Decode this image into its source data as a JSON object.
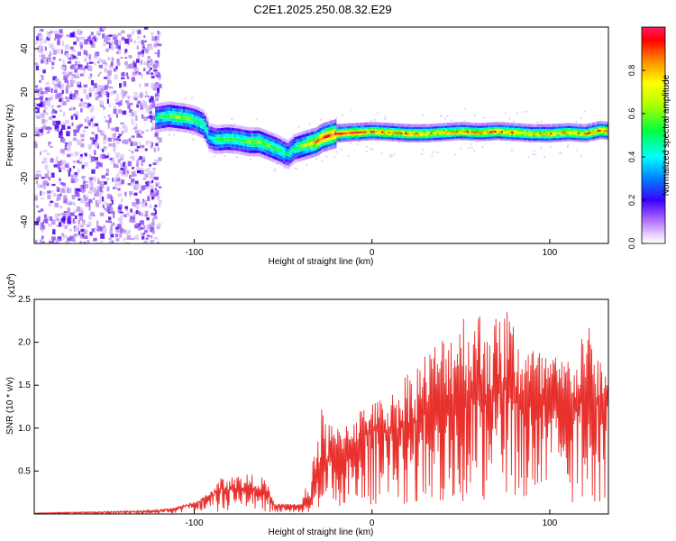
{
  "title": "C2E1.2025.250.08.32.E29",
  "top_panel": {
    "xlabel": "Height of straight line (km)",
    "ylabel": "Frequency (Hz)",
    "colorbar_label": "Normalized spectral amplitude"
  },
  "bottom_panel": {
    "xlabel": "Height of straight line (km)",
    "ylabel": "SNR (10 * v/v)",
    "multiplier_label": "(x10",
    "multiplier_exp": "4",
    "multiplier_close": ")"
  },
  "colors": {
    "snr_line": "#e8302c",
    "axis": "#000000",
    "scatter": "#b890ee"
  },
  "chart_data": [
    {
      "type": "heatmap",
      "title": "C2E1.2025.250.08.32.E29",
      "xlabel": "Height of straight line (km)",
      "ylabel": "Frequency (Hz)",
      "xlim": [
        -190,
        133
      ],
      "ylim": [
        -50,
        50
      ],
      "x_ticks": [
        -100,
        0,
        100
      ],
      "x_tick_labels": [
        "-100",
        "0",
        "100"
      ],
      "y_ticks": [
        -40,
        -20,
        0,
        20,
        40
      ],
      "y_tick_labels": [
        "-40",
        "-20",
        "0",
        "20",
        "40"
      ],
      "colorbar": {
        "label": "Normalized spectral amplitude",
        "range": [
          0,
          1
        ],
        "ticks": [
          0.0,
          0.2,
          0.4,
          0.6,
          0.8
        ],
        "tick_labels": [
          "0.0",
          "0.2",
          "0.4",
          "0.6",
          "0.8"
        ]
      },
      "ridge": {
        "x": [
          -122,
          -115,
          -110,
          -105,
          -100,
          -95,
          -92,
          -88,
          -82,
          -76,
          -70,
          -64,
          -58,
          -52,
          -48,
          -44,
          -40,
          -36,
          -32,
          -28,
          -24,
          -20,
          -10,
          0,
          10,
          20,
          30,
          40,
          50,
          60,
          70,
          80,
          90,
          100,
          110,
          120,
          128,
          133
        ],
        "frequency": [
          8,
          9,
          8.5,
          8,
          7,
          5,
          -1,
          -2,
          -1.5,
          -2,
          -3,
          -3,
          -5,
          -7,
          -9,
          -6,
          -5,
          -4,
          -3,
          -1,
          0,
          1,
          1.5,
          2,
          1.5,
          1,
          1,
          1.5,
          2,
          1.5,
          2,
          1.5,
          1,
          1,
          1.5,
          1,
          2.5,
          2
        ],
        "amplitude": [
          0.45,
          0.55,
          0.6,
          0.55,
          0.5,
          0.55,
          0.4,
          0.5,
          0.55,
          0.5,
          0.55,
          0.6,
          0.55,
          0.5,
          0.45,
          0.5,
          0.6,
          0.7,
          0.8,
          0.85,
          0.9,
          0.92,
          0.9,
          0.85,
          0.8,
          0.82,
          0.78,
          0.75,
          0.8,
          0.78,
          0.85,
          0.8,
          0.75,
          0.8,
          0.78,
          0.8,
          0.85,
          0.8
        ]
      },
      "noise_region_x": [
        -190,
        -120
      ]
    },
    {
      "type": "line",
      "xlabel": "Height of straight line (km)",
      "ylabel": "SNR (10 * v/v)",
      "y_multiplier": "x10^4",
      "xlim": [
        -190,
        133
      ],
      "ylim": [
        0,
        2.5
      ],
      "x_ticks": [
        -100,
        0,
        100
      ],
      "x_tick_labels": [
        "-100",
        "0",
        "100"
      ],
      "y_ticks": [
        0.5,
        1.0,
        1.5,
        2.0,
        2.5
      ],
      "y_tick_labels": [
        "0.5",
        "1.0",
        "1.5",
        "2.0",
        "2.5"
      ],
      "series": [
        {
          "name": "SNR",
          "x": [
            -190,
            -170,
            -150,
            -130,
            -120,
            -110,
            -100,
            -95,
            -90,
            -85,
            -80,
            -75,
            -70,
            -65,
            -60,
            -55,
            -50,
            -45,
            -40,
            -36,
            -32,
            -30,
            -25,
            -20,
            -15,
            -10,
            -5,
            0,
            5,
            10,
            15,
            20,
            25,
            30,
            35,
            40,
            45,
            50,
            55,
            60,
            65,
            70,
            75,
            80,
            85,
            90,
            95,
            100,
            105,
            110,
            115,
            120,
            125,
            130,
            133
          ],
          "values": [
            0.01,
            0.02,
            0.02,
            0.03,
            0.04,
            0.07,
            0.12,
            0.16,
            0.22,
            0.3,
            0.28,
            0.3,
            0.27,
            0.3,
            0.26,
            0.1,
            0.1,
            0.1,
            0.1,
            0.1,
            0.3,
            0.5,
            0.6,
            0.7,
            0.75,
            0.8,
            0.9,
            1.0,
            0.95,
            0.95,
            1.0,
            1.05,
            1.1,
            1.2,
            1.3,
            1.35,
            1.35,
            1.5,
            1.4,
            1.45,
            1.35,
            1.4,
            1.5,
            1.3,
            1.3,
            1.35,
            1.25,
            1.3,
            1.25,
            1.4,
            1.3,
            1.45,
            1.35,
            1.3,
            1.3
          ],
          "envelope": [
            0.01,
            0.02,
            0.03,
            0.04,
            0.05,
            0.08,
            0.14,
            0.2,
            0.28,
            0.42,
            0.5,
            0.45,
            0.48,
            0.44,
            0.42,
            0.12,
            0.12,
            0.12,
            0.12,
            0.4,
            0.9,
            1.3,
            1.1,
            1.0,
            1.1,
            1.2,
            1.25,
            1.3,
            1.35,
            1.4,
            1.5,
            1.7,
            1.8,
            1.9,
            2.0,
            2.1,
            2.2,
            2.45,
            2.3,
            2.4,
            2.45,
            2.3,
            2.5,
            2.3,
            2.1,
            2.0,
            1.9,
            1.95,
            1.8,
            1.85,
            1.8,
            2.4,
            1.9,
            1.8,
            1.6
          ]
        }
      ]
    }
  ]
}
